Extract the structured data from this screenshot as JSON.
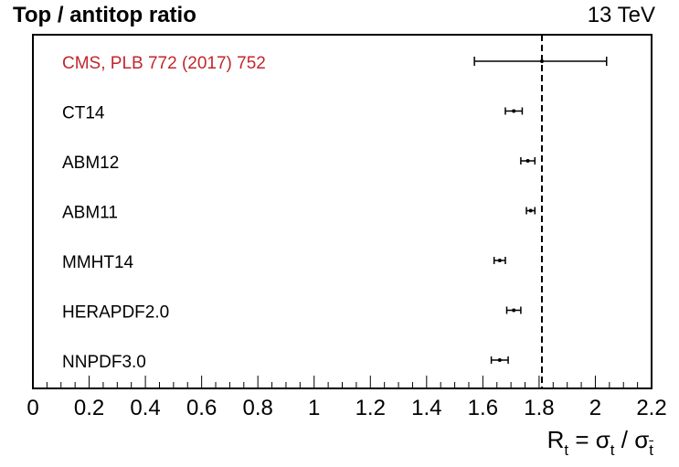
{
  "header": {
    "title": "Top / antitop ratio",
    "energy": "13 TeV"
  },
  "xlabel": {
    "symbol": "R",
    "symbol_sub": "t",
    "equals": "=",
    "numerator": "σ",
    "numerator_sub": "t",
    "slash": "/",
    "denominator": "σ",
    "denominator_sub": "t"
  },
  "chart_data": {
    "type": "scatter",
    "title": "Top / antitop ratio",
    "xlim": [
      0,
      2.2
    ],
    "xticks": [
      "0",
      "0.2",
      "0.4",
      "0.6",
      "0.8",
      "1",
      "1.2",
      "1.4",
      "1.6",
      "1.8",
      "2",
      "2.2"
    ],
    "reference_line": {
      "x": 1.81,
      "style": "dashed"
    },
    "entries": [
      {
        "label": "CMS, PLB 772 (2017) 752",
        "x": 1.81,
        "xerr_low": 0.24,
        "xerr_high": 0.23,
        "color": "#c0272d"
      },
      {
        "label": "CT14",
        "x": 1.71,
        "xerr_low": 0.03,
        "xerr_high": 0.03,
        "color": "#000000"
      },
      {
        "label": "ABM12",
        "x": 1.76,
        "xerr_low": 0.025,
        "xerr_high": 0.025,
        "color": "#000000"
      },
      {
        "label": "ABM11",
        "x": 1.77,
        "xerr_low": 0.015,
        "xerr_high": 0.015,
        "color": "#000000"
      },
      {
        "label": "MMHT14",
        "x": 1.66,
        "xerr_low": 0.02,
        "xerr_high": 0.02,
        "color": "#000000"
      },
      {
        "label": "HERAPDF2.0",
        "x": 1.71,
        "xerr_low": 0.025,
        "xerr_high": 0.025,
        "color": "#000000"
      },
      {
        "label": "NNPDF3.0",
        "x": 1.66,
        "xerr_low": 0.03,
        "xerr_high": 0.03,
        "color": "#000000"
      }
    ]
  }
}
